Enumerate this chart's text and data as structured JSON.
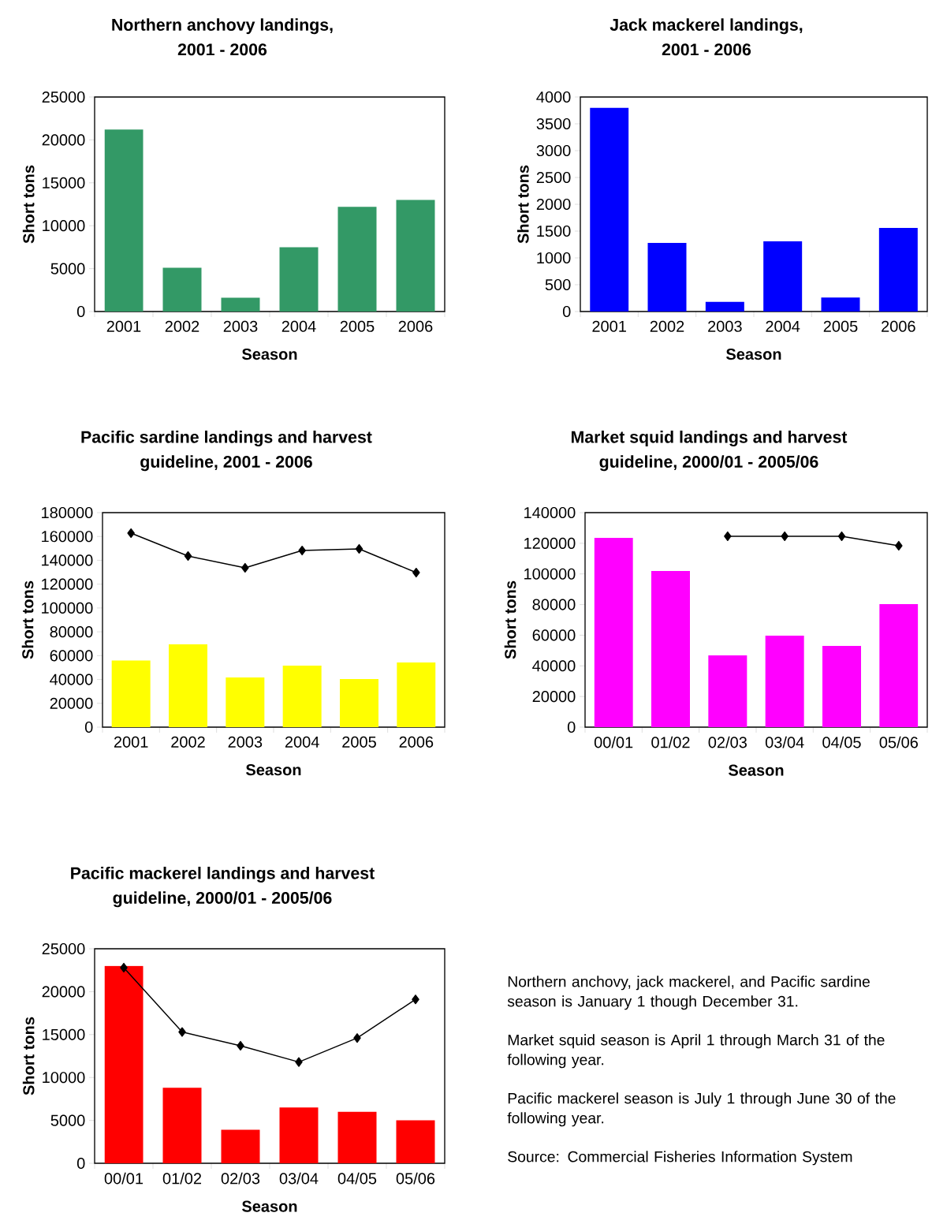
{
  "chart_data": [
    {
      "type": "bar",
      "title": "Northern anchovy landings, 2001 - 2006",
      "xlabel": "Season",
      "ylabel": "Short tons",
      "categories": [
        "2001",
        "2002",
        "2003",
        "2004",
        "2005",
        "2006"
      ],
      "series": [
        {
          "color": "#339966",
          "values": [
            21200,
            5100,
            1600,
            7500,
            12200,
            13000
          ]
        }
      ],
      "ylim": [
        0,
        25000
      ],
      "yticks": [
        0,
        5000,
        10000,
        15000,
        20000,
        25000
      ]
    },
    {
      "type": "bar",
      "title": "Jack mackerel landings, 2001 - 2006",
      "xlabel": "Season",
      "ylabel": "Short tons",
      "categories": [
        "2001",
        "2002",
        "2003",
        "2004",
        "2005",
        "2006"
      ],
      "series": [
        {
          "color": "#0000ff",
          "values": [
            3800,
            1280,
            180,
            1310,
            260,
            1560
          ]
        }
      ],
      "ylim": [
        0,
        4000
      ],
      "yticks": [
        0,
        500,
        1000,
        1500,
        2000,
        2500,
        3000,
        3500,
        4000
      ]
    },
    {
      "type": "bar",
      "title": "Pacific sardine landings and harvest guideline, 2001 - 2006",
      "xlabel": "Season",
      "ylabel": "Short tons",
      "categories": [
        "2001",
        "2002",
        "2003",
        "2004",
        "2005",
        "2006"
      ],
      "series": [
        {
          "color": "#ffff00",
          "values": [
            56000,
            69500,
            41700,
            51600,
            40400,
            54300
          ]
        },
        {
          "type": "line",
          "color": "#000000",
          "marker": "diamond",
          "values": [
            162800,
            143600,
            133700,
            148200,
            149600,
            129700
          ]
        }
      ],
      "ylim": [
        0,
        180000
      ],
      "yticks": [
        0,
        20000,
        40000,
        60000,
        80000,
        100000,
        120000,
        140000,
        160000,
        180000
      ]
    },
    {
      "type": "bar",
      "title": "Market squid landings and harvest guideline, 2000/01 - 2005/06",
      "xlabel": "Season",
      "ylabel": "Short tons",
      "categories": [
        "00/01",
        "01/02",
        "02/03",
        "03/04",
        "04/05",
        "05/06"
      ],
      "series": [
        {
          "color": "#ff00ff",
          "values": [
            123500,
            101900,
            46800,
            59700,
            53000,
            80300
          ]
        },
        {
          "type": "line",
          "color": "#000000",
          "marker": "diamond",
          "values": [
            null,
            null,
            124600,
            124600,
            124600,
            118400
          ]
        }
      ],
      "ylim": [
        0,
        140000
      ],
      "yticks": [
        0,
        20000,
        40000,
        60000,
        80000,
        100000,
        120000,
        140000
      ]
    },
    {
      "type": "bar",
      "title": "Pacific mackerel landings and harvest guideline, 2000/01 - 2005/06",
      "xlabel": "Season",
      "ylabel": "Short tons",
      "categories": [
        "00/01",
        "01/02",
        "02/03",
        "03/04",
        "04/05",
        "05/06"
      ],
      "series": [
        {
          "color": "#ff0000",
          "values": [
            23000,
            8800,
            3900,
            6500,
            6000,
            5000
          ]
        },
        {
          "type": "line",
          "color": "#000000",
          "marker": "diamond",
          "values": [
            22800,
            15300,
            13700,
            11800,
            14600,
            19100
          ]
        }
      ],
      "ylim": [
        0,
        25000
      ],
      "yticks": [
        0,
        5000,
        10000,
        15000,
        20000,
        25000
      ]
    },
    {
      "type": "other",
      "annotations": [
        "Northern anchovy, jack mackerel, and Pacific sardine season is January 1 though December 31.",
        "Market squid season is April 1 through March 31 of the following year.",
        "Pacific mackerel season is July 1 through June 30 of the following year.",
        "Source:  Commercial Fisheries Information System"
      ]
    }
  ]
}
